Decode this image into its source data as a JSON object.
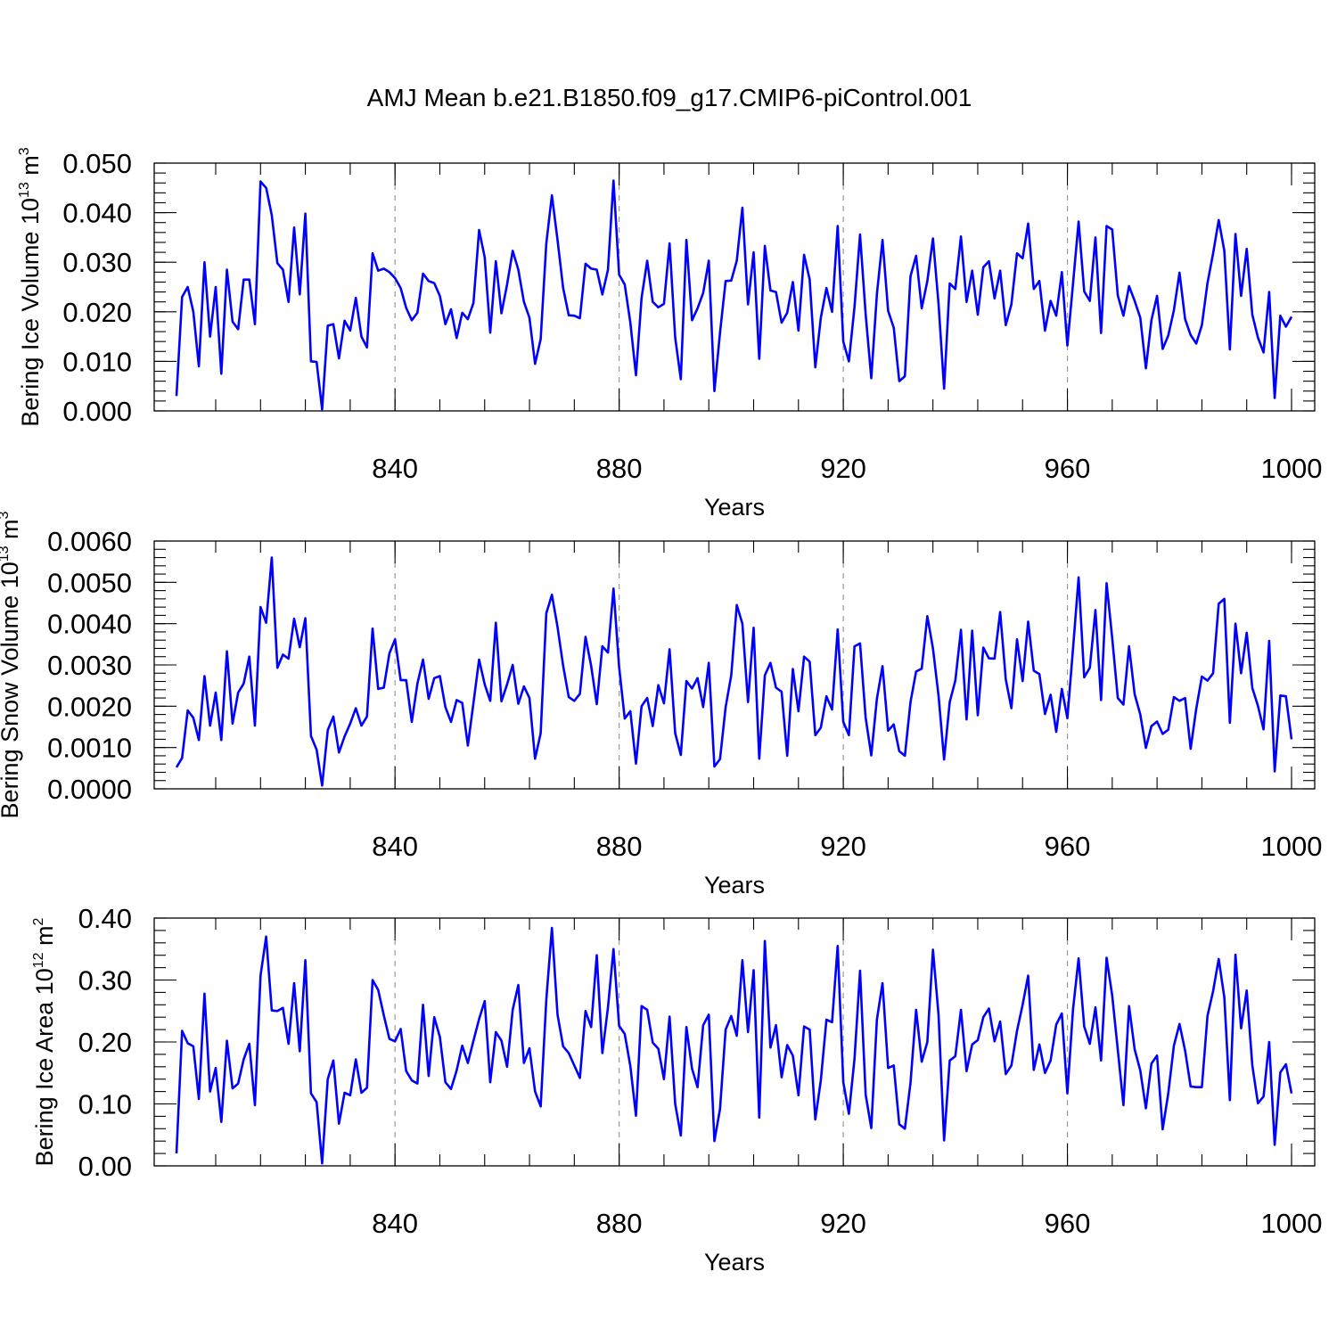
{
  "title": "AMJ Mean b.e21.B1850.f09_g17.CMIP6-piControl.001",
  "colors": {
    "line": "#0000ff",
    "grid": "#999999"
  },
  "chart_data": [
    {
      "type": "line",
      "name": "ice-volume",
      "xlabel": "Years",
      "ylabel": "Bering Ice Volume 10",
      "ylabel_exp": "13",
      "ylabel_unit": "m",
      "ylabel_unit_exp": "3",
      "xlim": [
        801,
        1000
      ],
      "ylim": [
        0.0,
        0.05
      ],
      "yticks": [
        0.0,
        0.01,
        0.02,
        0.03,
        0.04,
        0.05
      ],
      "ytick_labels": [
        "0.000",
        "0.010",
        "0.020",
        "0.030",
        "0.040",
        "0.050"
      ],
      "yminor_step": 0.002,
      "xticks": [
        840,
        880,
        920,
        960,
        1000
      ],
      "xtick_labels": [
        "840",
        "880",
        "920",
        "960",
        "1000"
      ],
      "xminor_step": 8,
      "grid_x": true,
      "x_start": 801,
      "values": [
        0.003,
        0.023,
        0.025,
        0.02,
        0.009,
        0.03,
        0.015,
        0.025,
        0.0075,
        0.0285,
        0.018,
        0.0165,
        0.0265,
        0.0265,
        0.0175,
        0.0463,
        0.045,
        0.0395,
        0.0298,
        0.0285,
        0.022,
        0.037,
        0.0235,
        0.0398,
        0.01,
        0.0099,
        0.0003,
        0.0172,
        0.0175,
        0.0106,
        0.0182,
        0.0162,
        0.0228,
        0.015,
        0.0128,
        0.0318,
        0.0283,
        0.0287,
        0.028,
        0.0268,
        0.0248,
        0.0208,
        0.0183,
        0.0198,
        0.0277,
        0.0262,
        0.0258,
        0.0232,
        0.0175,
        0.0205,
        0.0147,
        0.0198,
        0.0185,
        0.0218,
        0.0365,
        0.031,
        0.0158,
        0.0302,
        0.0197,
        0.0255,
        0.0323,
        0.0285,
        0.022,
        0.0188,
        0.0095,
        0.0145,
        0.0338,
        0.0435,
        0.0345,
        0.0248,
        0.0193,
        0.0192,
        0.0187,
        0.0297,
        0.0287,
        0.0285,
        0.0235,
        0.0285,
        0.0465,
        0.0275,
        0.0255,
        0.0178,
        0.0072,
        0.0228,
        0.0303,
        0.022,
        0.0209,
        0.0216,
        0.0338,
        0.0148,
        0.0064,
        0.0345,
        0.0183,
        0.0207,
        0.0238,
        0.0303,
        0.004,
        0.0158,
        0.0262,
        0.0263,
        0.0303,
        0.041,
        0.0215,
        0.032,
        0.0105,
        0.0333,
        0.0243,
        0.024,
        0.0178,
        0.0198,
        0.026,
        0.0162,
        0.0315,
        0.0265,
        0.0088,
        0.0188,
        0.0248,
        0.02,
        0.0373,
        0.014,
        0.01,
        0.021,
        0.0356,
        0.0195,
        0.0066,
        0.0235,
        0.0345,
        0.0202,
        0.0168,
        0.006,
        0.007,
        0.0272,
        0.0313,
        0.0207,
        0.0262,
        0.0348,
        0.0215,
        0.0045,
        0.0257,
        0.0246,
        0.0352,
        0.022,
        0.0283,
        0.0194,
        0.029,
        0.0302,
        0.0227,
        0.0283,
        0.0173,
        0.0215,
        0.0318,
        0.0308,
        0.0378,
        0.0246,
        0.0262,
        0.0162,
        0.0222,
        0.0192,
        0.028,
        0.0132,
        0.0256,
        0.0382,
        0.0241,
        0.0222,
        0.035,
        0.0157,
        0.0373,
        0.0366,
        0.0233,
        0.0192,
        0.0252,
        0.0222,
        0.0188,
        0.0086,
        0.0183,
        0.0232,
        0.0125,
        0.0152,
        0.0203,
        0.0279,
        0.0185,
        0.0153,
        0.0136,
        0.0173,
        0.0258,
        0.0318,
        0.0385,
        0.0323,
        0.0124,
        0.0357,
        0.0232,
        0.0327,
        0.0194,
        0.0148,
        0.0118,
        0.024,
        0.0026,
        0.0192,
        0.017,
        0.019
      ]
    },
    {
      "type": "line",
      "name": "snow-volume",
      "xlabel": "Years",
      "ylabel": "Bering Snow Volume 10",
      "ylabel_exp": "13",
      "ylabel_unit": "m",
      "ylabel_unit_exp": "3",
      "xlim": [
        801,
        1000
      ],
      "ylim": [
        0.0,
        0.006
      ],
      "yticks": [
        0.0,
        0.001,
        0.002,
        0.003,
        0.004,
        0.005,
        0.006
      ],
      "ytick_labels": [
        "0.0000",
        "0.0010",
        "0.0020",
        "0.0030",
        "0.0040",
        "0.0050",
        "0.0060"
      ],
      "yminor_step": 0.0002,
      "xticks": [
        840,
        880,
        920,
        960,
        1000
      ],
      "xtick_labels": [
        "840",
        "880",
        "920",
        "960",
        "1000"
      ],
      "xminor_step": 8,
      "grid_x": true,
      "x_start": 801,
      "values": [
        0.00052,
        0.00075,
        0.0019,
        0.00172,
        0.00118,
        0.00273,
        0.00153,
        0.00233,
        0.00118,
        0.00333,
        0.00158,
        0.00233,
        0.00255,
        0.0032,
        0.00153,
        0.0044,
        0.00402,
        0.0056,
        0.00293,
        0.00325,
        0.00315,
        0.00412,
        0.00343,
        0.00413,
        0.00128,
        0.00095,
        8e-05,
        0.00142,
        0.00175,
        0.00088,
        0.00127,
        0.00158,
        0.00195,
        0.00153,
        0.00175,
        0.00388,
        0.00242,
        0.00245,
        0.00328,
        0.00362,
        0.00263,
        0.00263,
        0.00162,
        0.00255,
        0.00313,
        0.00218,
        0.00268,
        0.00273,
        0.00198,
        0.00162,
        0.00215,
        0.00208,
        0.00105,
        0.00208,
        0.00313,
        0.00253,
        0.00213,
        0.00402,
        0.00212,
        0.00253,
        0.003,
        0.00206,
        0.00248,
        0.0022,
        0.00073,
        0.00135,
        0.00425,
        0.0047,
        0.00392,
        0.00298,
        0.00222,
        0.00213,
        0.0023,
        0.00368,
        0.00298,
        0.00205,
        0.00345,
        0.0033,
        0.00485,
        0.00295,
        0.0017,
        0.00188,
        0.00061,
        0.002,
        0.0022,
        0.00152,
        0.00251,
        0.00207,
        0.00338,
        0.00135,
        0.00082,
        0.00261,
        0.00243,
        0.00268,
        0.00198,
        0.00305,
        0.00054,
        0.00072,
        0.00198,
        0.00275,
        0.00445,
        0.004,
        0.0021,
        0.0039,
        0.00073,
        0.00275,
        0.00305,
        0.00245,
        0.00235,
        0.0008,
        0.0029,
        0.00188,
        0.0032,
        0.00308,
        0.0013,
        0.00148,
        0.00224,
        0.00192,
        0.00386,
        0.00162,
        0.0013,
        0.00345,
        0.00352,
        0.00172,
        0.00081,
        0.00218,
        0.00297,
        0.00141,
        0.00156,
        0.00091,
        0.0008,
        0.0021,
        0.00284,
        0.00291,
        0.00418,
        0.0034,
        0.00225,
        0.00071,
        0.0021,
        0.00262,
        0.00385,
        0.00168,
        0.00383,
        0.00178,
        0.00342,
        0.00316,
        0.00315,
        0.00428,
        0.00265,
        0.00195,
        0.00362,
        0.00261,
        0.00405,
        0.00286,
        0.00278,
        0.00181,
        0.00228,
        0.00138,
        0.00242,
        0.00171,
        0.00338,
        0.00512,
        0.0027,
        0.00293,
        0.00433,
        0.00215,
        0.00498,
        0.00365,
        0.0022,
        0.00204,
        0.00345,
        0.00229,
        0.0018,
        0.00099,
        0.00152,
        0.00163,
        0.00133,
        0.00143,
        0.00222,
        0.00213,
        0.0022,
        0.00097,
        0.00194,
        0.00272,
        0.00262,
        0.0028,
        0.00448,
        0.0046,
        0.0016,
        0.004,
        0.0028,
        0.00378,
        0.00244,
        0.00201,
        0.00144,
        0.00358,
        0.00042,
        0.00226,
        0.00224,
        0.0012
      ]
    },
    {
      "type": "line",
      "name": "ice-area",
      "xlabel": "Years",
      "ylabel": "Bering Ice Area 10",
      "ylabel_exp": "12",
      "ylabel_unit": "m",
      "ylabel_unit_exp": "2",
      "xlim": [
        801,
        1000
      ],
      "ylim": [
        0.0,
        0.4
      ],
      "yticks": [
        0.0,
        0.1,
        0.2,
        0.3,
        0.4
      ],
      "ytick_labels": [
        "0.00",
        "0.10",
        "0.20",
        "0.30",
        "0.40"
      ],
      "yminor_step": 0.02,
      "xticks": [
        840,
        880,
        920,
        960,
        1000
      ],
      "xtick_labels": [
        "840",
        "880",
        "920",
        "960",
        "1000"
      ],
      "xminor_step": 8,
      "grid_x": true,
      "x_start": 801,
      "values": [
        0.02,
        0.218,
        0.198,
        0.193,
        0.108,
        0.278,
        0.12,
        0.158,
        0.071,
        0.202,
        0.125,
        0.133,
        0.172,
        0.197,
        0.098,
        0.307,
        0.37,
        0.251,
        0.25,
        0.255,
        0.197,
        0.295,
        0.185,
        0.332,
        0.117,
        0.103,
        0.004,
        0.14,
        0.17,
        0.068,
        0.118,
        0.114,
        0.172,
        0.118,
        0.126,
        0.3,
        0.284,
        0.243,
        0.205,
        0.201,
        0.221,
        0.153,
        0.138,
        0.133,
        0.26,
        0.145,
        0.24,
        0.208,
        0.135,
        0.124,
        0.154,
        0.194,
        0.166,
        0.202,
        0.237,
        0.266,
        0.135,
        0.216,
        0.202,
        0.16,
        0.252,
        0.292,
        0.166,
        0.19,
        0.12,
        0.096,
        0.268,
        0.384,
        0.244,
        0.193,
        0.182,
        0.162,
        0.142,
        0.25,
        0.224,
        0.34,
        0.182,
        0.256,
        0.35,
        0.226,
        0.213,
        0.161,
        0.081,
        0.258,
        0.252,
        0.199,
        0.189,
        0.14,
        0.241,
        0.1,
        0.049,
        0.224,
        0.157,
        0.127,
        0.227,
        0.244,
        0.04,
        0.092,
        0.22,
        0.242,
        0.21,
        0.332,
        0.216,
        0.316,
        0.078,
        0.363,
        0.191,
        0.227,
        0.143,
        0.195,
        0.178,
        0.114,
        0.225,
        0.22,
        0.075,
        0.138,
        0.236,
        0.232,
        0.355,
        0.135,
        0.084,
        0.173,
        0.315,
        0.115,
        0.061,
        0.236,
        0.295,
        0.158,
        0.162,
        0.067,
        0.06,
        0.134,
        0.252,
        0.168,
        0.2,
        0.349,
        0.243,
        0.041,
        0.17,
        0.177,
        0.252,
        0.153,
        0.196,
        0.203,
        0.24,
        0.254,
        0.201,
        0.233,
        0.148,
        0.162,
        0.218,
        0.26,
        0.307,
        0.155,
        0.196,
        0.15,
        0.17,
        0.228,
        0.246,
        0.117,
        0.252,
        0.335,
        0.225,
        0.197,
        0.256,
        0.17,
        0.336,
        0.275,
        0.187,
        0.098,
        0.258,
        0.188,
        0.154,
        0.093,
        0.165,
        0.178,
        0.059,
        0.117,
        0.194,
        0.229,
        0.186,
        0.128,
        0.127,
        0.127,
        0.242,
        0.282,
        0.334,
        0.272,
        0.106,
        0.341,
        0.222,
        0.283,
        0.162,
        0.101,
        0.112,
        0.2,
        0.034,
        0.151,
        0.164,
        0.117
      ]
    }
  ]
}
